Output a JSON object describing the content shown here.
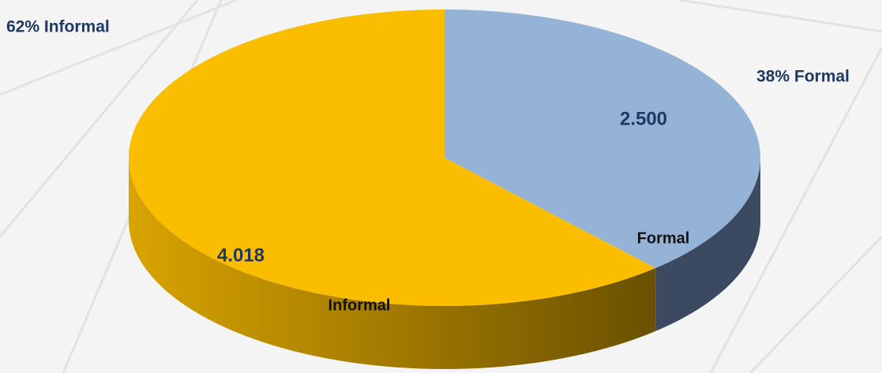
{
  "chart_data": {
    "type": "pie",
    "categories": [
      "Formal",
      "Informal"
    ],
    "values": [
      2500,
      4018
    ],
    "value_labels": [
      "2.500",
      "4.018"
    ],
    "colors": [
      "#95b3d7",
      "#fabd00"
    ],
    "annotations": [
      "62% Informal",
      "38% Formal"
    ]
  }
}
